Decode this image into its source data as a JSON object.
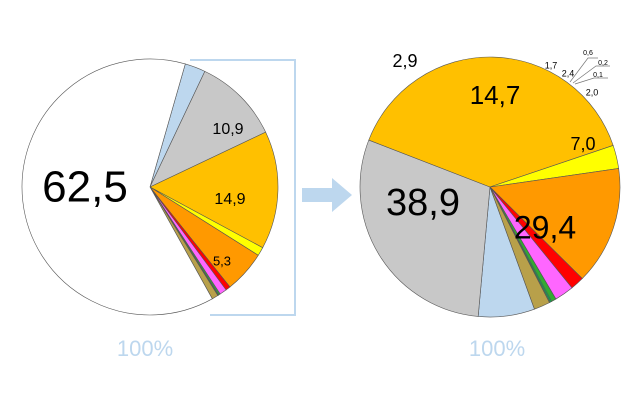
{
  "chart_data": [
    {
      "type": "pie",
      "start_angle": 16,
      "total_label": "100%",
      "values": [
        2.6,
        10.9,
        14.9,
        1.1,
        5.3,
        0.6,
        0.9,
        0.2,
        0.1,
        0.04,
        0.8,
        62.5
      ],
      "value_labels": [
        null,
        "10,9",
        "14,9",
        null,
        "5,3",
        null,
        null,
        null,
        null,
        null,
        null,
        "62,5"
      ],
      "colors": [
        "#bdd7ee",
        "#c8c8c8",
        "#ffc000",
        "#ffff00",
        "#ff9900",
        "#ff0000",
        "#ff66ff",
        "#33aa33",
        "#00b050",
        "#70ad47",
        "#b8a04a",
        "#ffffff"
      ]
    },
    {
      "type": "pie",
      "start_angle": 160,
      "total_label": "100%",
      "values": [
        7.0,
        29.4,
        38.9,
        2.9,
        14.7,
        1.7,
        2.4,
        0.6,
        0.2,
        0.1,
        2.0
      ],
      "value_labels": [
        "7,0",
        "29,4",
        "38,9",
        "2,9",
        "14,7",
        "1,7",
        "2,4",
        "0,6",
        "0,2",
        "0,1",
        "2,0"
      ],
      "colors": [
        "#bdd7ee",
        "#c8c8c8",
        "#ffc000",
        "#ffff00",
        "#ff9900",
        "#ff0000",
        "#ff66ff",
        "#33aa33",
        "#00b050",
        "#70ad47",
        "#b8a04a"
      ]
    }
  ]
}
